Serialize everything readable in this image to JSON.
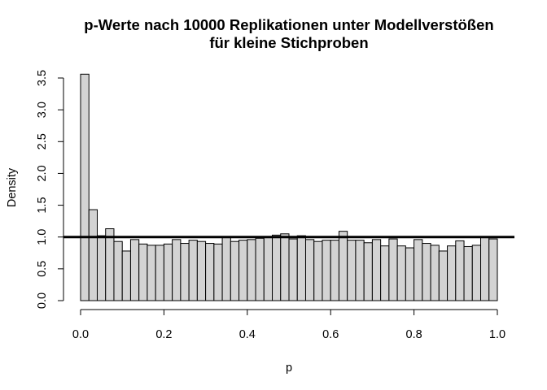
{
  "chart_data": {
    "type": "bar",
    "title": "p-Werte nach 10000 Replikationen unter Modellverstößen",
    "subtitle": "für kleine Stichproben",
    "xlabel": "p",
    "ylabel": "Density",
    "xlim": [
      0,
      1
    ],
    "ylim": [
      0,
      3.5
    ],
    "x_ticks": [
      "0.0",
      "0.2",
      "0.4",
      "0.6",
      "0.8",
      "1.0"
    ],
    "y_ticks": [
      "0.0",
      "0.5",
      "1.0",
      "1.5",
      "2.0",
      "2.5",
      "3.0",
      "3.5"
    ],
    "bin_width": 0.02,
    "values": [
      3.56,
      1.43,
      1.02,
      1.13,
      0.93,
      0.78,
      0.96,
      0.89,
      0.87,
      0.87,
      0.89,
      0.96,
      0.9,
      0.95,
      0.93,
      0.9,
      0.89,
      1.0,
      0.93,
      0.95,
      0.96,
      0.98,
      0.99,
      1.03,
      1.05,
      0.97,
      1.02,
      0.96,
      0.93,
      0.95,
      0.95,
      1.09,
      0.95,
      0.95,
      0.91,
      0.96,
      0.86,
      0.97,
      0.86,
      0.83,
      0.96,
      0.9,
      0.87,
      0.78,
      0.86,
      0.94,
      0.85,
      0.87,
      1.0,
      0.97
    ],
    "reference_line": 1.0,
    "bar_color": "#d3d3d3",
    "bar_border": "#000000",
    "line_color": "#000000",
    "grid": false
  }
}
